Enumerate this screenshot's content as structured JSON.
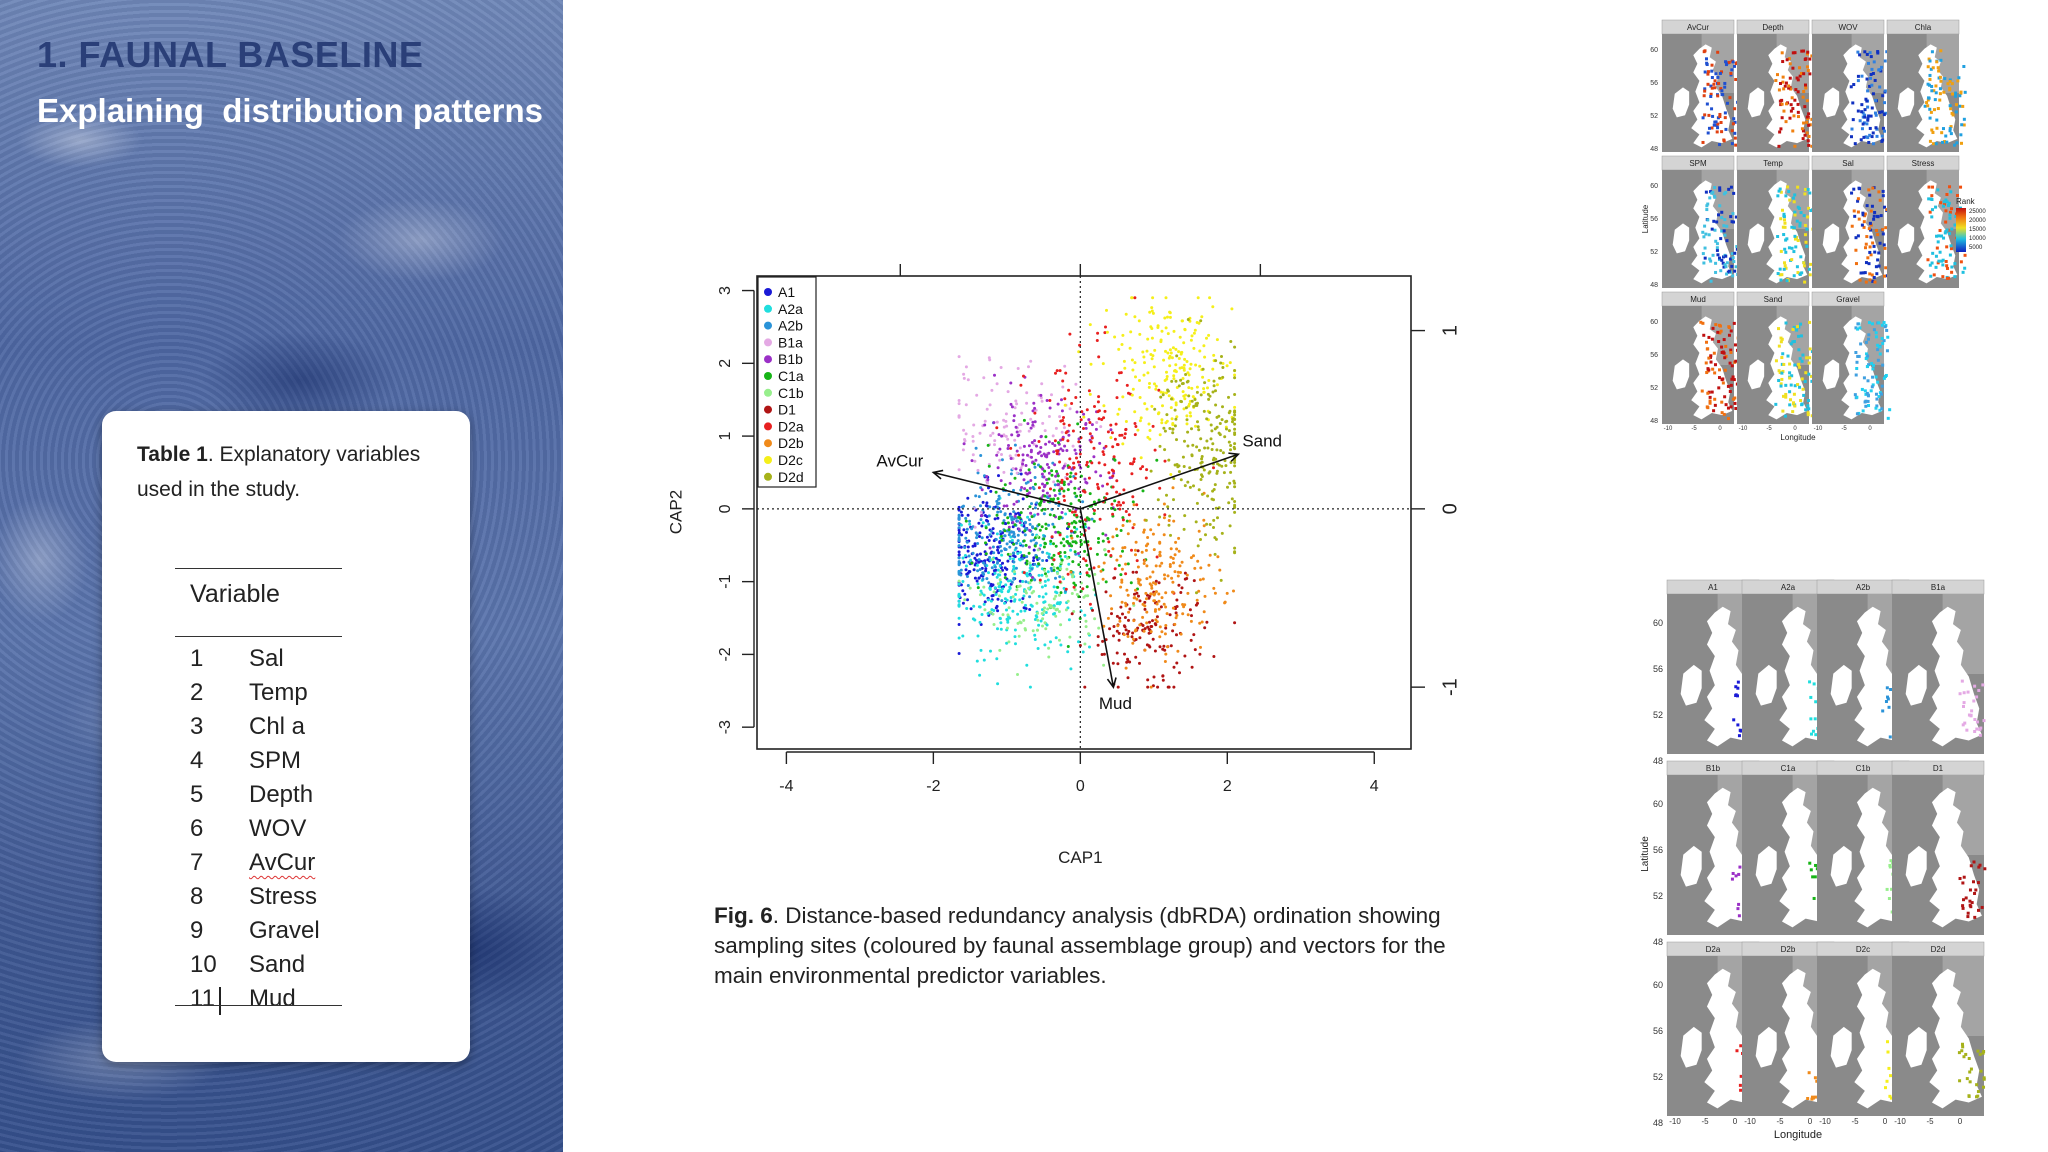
{
  "slide": {
    "heading": "1. FAUNAL BASELINE",
    "subheading": "Explaining  distribution patterns"
  },
  "table": {
    "caption_bold": "Table 1",
    "caption_rest": ". Explanatory variables used in the study.",
    "header": "Variable",
    "rows": [
      {
        "num": "1",
        "name": "Sal"
      },
      {
        "num": "2",
        "name": "Temp"
      },
      {
        "num": "3",
        "name": "Chl a"
      },
      {
        "num": "4",
        "name": "SPM"
      },
      {
        "num": "5",
        "name": "Depth"
      },
      {
        "num": "6",
        "name": "WOV"
      },
      {
        "num": "7",
        "name": "AvCur"
      },
      {
        "num": "8",
        "name": "Stress"
      },
      {
        "num": "9",
        "name": "Gravel"
      },
      {
        "num": "10",
        "name": "Sand"
      },
      {
        "num": "11",
        "name": "Mud"
      }
    ]
  },
  "figure": {
    "caption_bold": "Fig. 6",
    "caption_rest": ". Distance-based redundancy analysis (dbRDA) ordination showing sampling sites (coloured by faunal assemblage group) and vectors for the main environmental predictor variables."
  },
  "chart_data": {
    "type": "scatter",
    "title": "",
    "xlabel": "CAP1",
    "ylabel": "CAP2",
    "xlim": [
      -4.4,
      4.5
    ],
    "ylim": [
      -3.3,
      3.2
    ],
    "xticks": [
      "-4",
      "-2",
      "0",
      "2",
      "4"
    ],
    "yticks": [
      "-3",
      "-2",
      "-1",
      "0",
      "1",
      "2",
      "3"
    ],
    "secondary_ticks": [
      "-1",
      "0",
      "1"
    ],
    "legend_position": "top-left",
    "grid": false,
    "reference_lines": {
      "x": 0,
      "y": 0,
      "style": "dotted"
    },
    "groups": [
      {
        "name": "A1",
        "color": "#1a1ad6",
        "center": [
          -1.2,
          -0.6
        ],
        "spread": [
          0.35,
          0.45
        ],
        "count": 230
      },
      {
        "name": "A2a",
        "color": "#20dede",
        "center": [
          -0.8,
          -1.1
        ],
        "spread": [
          0.45,
          0.45
        ],
        "count": 240
      },
      {
        "name": "A2b",
        "color": "#2a93d8",
        "center": [
          -1.0,
          -0.3
        ],
        "spread": [
          0.45,
          0.5
        ],
        "count": 220
      },
      {
        "name": "B1a",
        "color": "#e4a9e4",
        "center": [
          -0.9,
          1.1
        ],
        "spread": [
          0.45,
          0.45
        ],
        "count": 120
      },
      {
        "name": "B1b",
        "color": "#9b30c7",
        "center": [
          -0.5,
          0.55
        ],
        "spread": [
          0.45,
          0.45
        ],
        "count": 200
      },
      {
        "name": "C1a",
        "color": "#16b416",
        "center": [
          -0.2,
          -0.2
        ],
        "spread": [
          0.5,
          0.5
        ],
        "count": 230
      },
      {
        "name": "C1b",
        "color": "#97ef8c",
        "center": [
          -0.5,
          -1.3
        ],
        "spread": [
          0.45,
          0.35
        ],
        "count": 110
      },
      {
        "name": "D1",
        "color": "#b01414",
        "center": [
          0.9,
          -1.7
        ],
        "spread": [
          0.4,
          0.4
        ],
        "count": 150
      },
      {
        "name": "D2a",
        "color": "#e82020",
        "center": [
          0.2,
          0.5
        ],
        "spread": [
          0.45,
          0.8
        ],
        "count": 200
      },
      {
        "name": "D2b",
        "color": "#f08a1a",
        "center": [
          1.1,
          -1.0
        ],
        "spread": [
          0.4,
          0.5
        ],
        "count": 200
      },
      {
        "name": "D2c",
        "color": "#f5ef1a",
        "center": [
          1.2,
          1.9
        ],
        "spread": [
          0.45,
          0.5
        ],
        "count": 220
      },
      {
        "name": "D2d",
        "color": "#a6b21a",
        "center": [
          1.7,
          0.9
        ],
        "spread": [
          0.35,
          0.75
        ],
        "count": 230
      }
    ],
    "vectors": [
      {
        "name": "AvCur",
        "to": [
          -2.0,
          0.5
        ]
      },
      {
        "name": "Sand",
        "to": [
          2.15,
          0.75
        ]
      },
      {
        "name": "Mud",
        "to": [
          0.45,
          -2.45
        ]
      }
    ]
  },
  "maps": {
    "env_panels": [
      "AvCur",
      "Depth",
      "WOV",
      "Chla",
      "SPM",
      "Temp",
      "Sal",
      "Stress",
      "Mud",
      "Sand",
      "Gravel"
    ],
    "group_panels": [
      "A1",
      "A2a",
      "A2b",
      "B1a",
      "B1b",
      "C1a",
      "C1b",
      "D1",
      "D2a",
      "D2b",
      "D2c",
      "D2d"
    ],
    "lat_ticks": [
      "60",
      "56",
      "52",
      "48"
    ],
    "lon_ticks": [
      "-10",
      "-5",
      "0"
    ],
    "ylabel": "Latitude",
    "xlabel": "Longitude",
    "rank_legend": {
      "title": "Rank",
      "labels": [
        "25000",
        "20000",
        "15000",
        "10000",
        "5000"
      ]
    }
  }
}
